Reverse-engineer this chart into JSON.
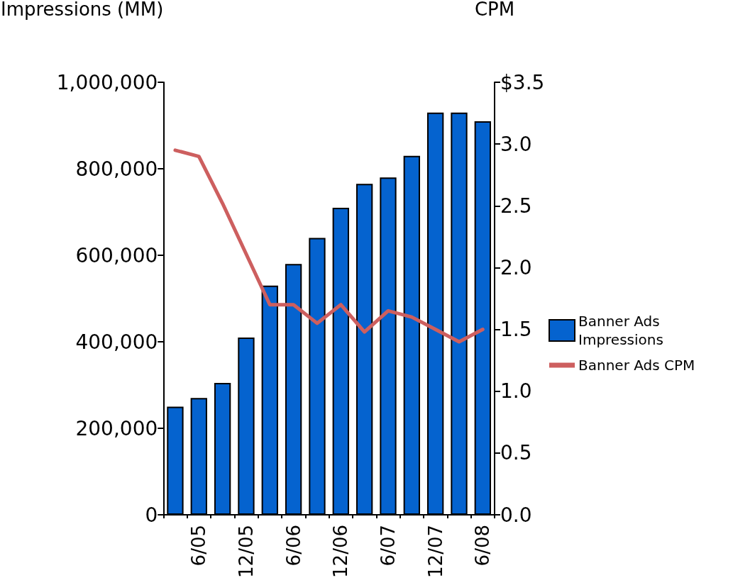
{
  "chart_data": {
    "type": "bar",
    "ylabel": "Impressions (MM)",
    "y2label": "CPM",
    "categories": [
      null,
      "6/05",
      null,
      "12/05",
      null,
      "6/06",
      null,
      "12/06",
      null,
      "6/07",
      null,
      "12/07",
      null,
      "6/08"
    ],
    "series": [
      {
        "name": "Banner Ads\nImpressions",
        "color": "#0563cf",
        "values": [
          250000,
          270000,
          305000,
          410000,
          530000,
          580000,
          640000,
          710000,
          765000,
          780000,
          830000,
          930000,
          930000,
          910000
        ]
      },
      {
        "name": "Banner Ads CPM",
        "type": "line",
        "axis": "y2",
        "color": "#cd5f5f",
        "values": [
          2.95,
          2.9,
          2.52,
          2.11,
          1.7,
          1.7,
          1.55,
          1.7,
          1.48,
          1.65,
          1.6,
          1.5,
          1.4,
          1.5
        ]
      }
    ],
    "ylim": [
      0,
      1000000
    ],
    "yticks": [
      {
        "value": 0,
        "label": "0"
      },
      {
        "value": 200000,
        "label": "200,000"
      },
      {
        "value": 400000,
        "label": "400,000"
      },
      {
        "value": 600000,
        "label": "600,000"
      },
      {
        "value": 800000,
        "label": "800,000"
      },
      {
        "value": 1000000,
        "label": "1,000,000"
      }
    ],
    "y2lim": [
      0,
      3.5
    ],
    "y2ticks": [
      {
        "value": 0,
        "label": "0.0"
      },
      {
        "value": 0.5,
        "label": "0.5"
      },
      {
        "value": 1,
        "label": "1.0"
      },
      {
        "value": 1.5,
        "label": "1.5"
      },
      {
        "value": 2,
        "label": "2.0"
      },
      {
        "value": 2.5,
        "label": "2.5"
      },
      {
        "value": 3,
        "label": "3.0"
      },
      {
        "value": 3.5,
        "label": "$3.5"
      }
    ],
    "grid": false,
    "legend": "right",
    "marker": "none",
    "line_style": "solid"
  }
}
